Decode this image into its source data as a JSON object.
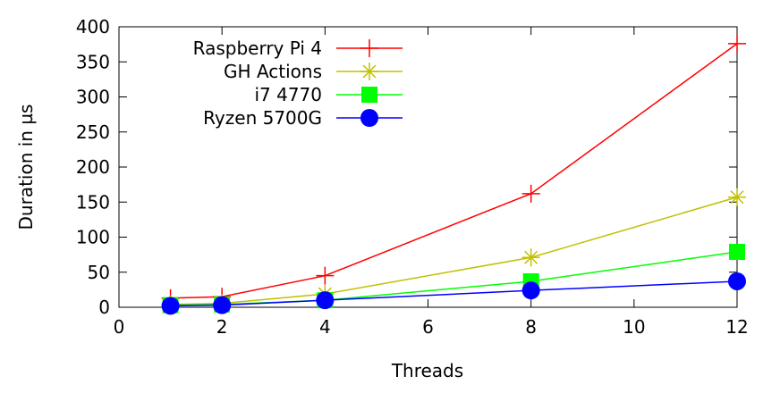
{
  "chart_data": {
    "type": "line",
    "title": "",
    "xlabel": "Threads",
    "ylabel": "Duration in µs",
    "xlim": [
      0,
      12
    ],
    "ylim": [
      0,
      400
    ],
    "xticks": [
      0,
      2,
      4,
      6,
      8,
      10,
      12
    ],
    "yticks": [
      0,
      50,
      100,
      150,
      200,
      250,
      300,
      350,
      400
    ],
    "grid": false,
    "legend_position": "top-left",
    "x": [
      1,
      2,
      4,
      8,
      12
    ],
    "series": [
      {
        "name": "Raspberry Pi 4",
        "color": "#ff0000",
        "marker": "plus",
        "values": [
          13,
          15,
          45,
          162,
          376
        ]
      },
      {
        "name": "GH Actions",
        "color": "#c0c000",
        "marker": "star",
        "values": [
          4,
          5.5,
          19,
          71,
          157
        ]
      },
      {
        "name": "i7 4770",
        "color": "#00ff00",
        "marker": "square",
        "values": [
          3,
          4,
          10,
          37,
          79
        ]
      },
      {
        "name": "Ryzen 5700G",
        "color": "#0000ff",
        "marker": "circle",
        "values": [
          2,
          3,
          10,
          24,
          37
        ]
      }
    ]
  }
}
